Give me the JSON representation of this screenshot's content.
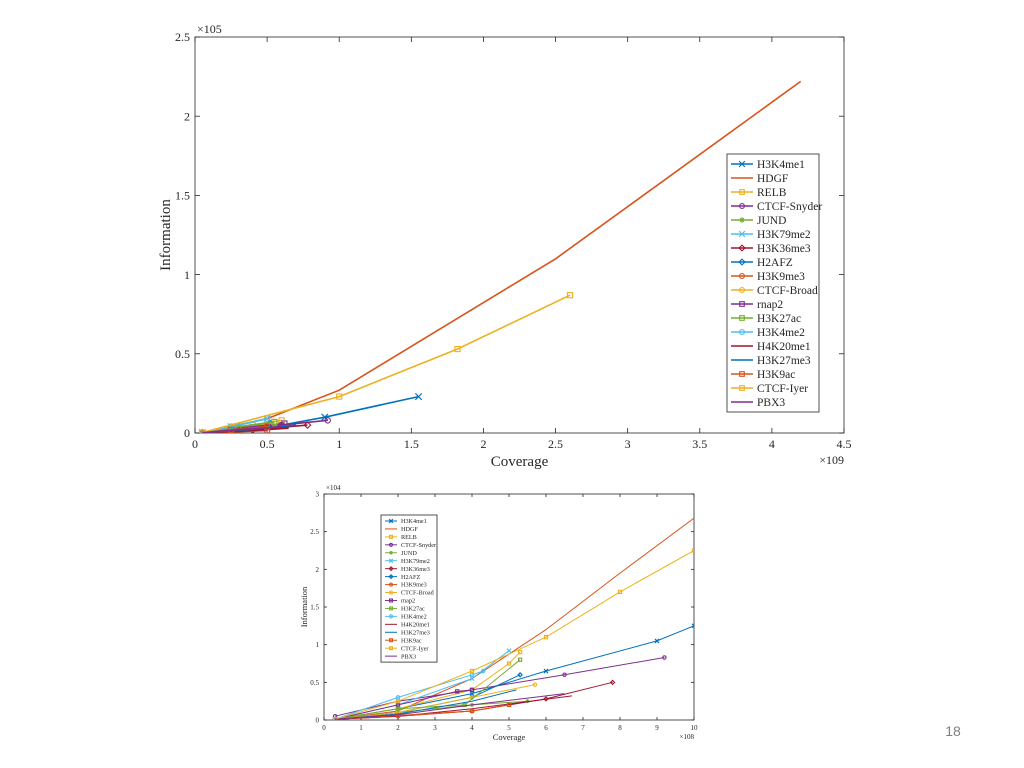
{
  "slide_number": "18",
  "series_styles": [
    {
      "name": "H3K4me1",
      "color": "#0072bd",
      "marker": "x"
    },
    {
      "name": "HDGF",
      "color": "#d95319",
      "marker": "none"
    },
    {
      "name": "RELB",
      "color": "#edb120",
      "marker": "square"
    },
    {
      "name": "CTCF-Snyder",
      "color": "#7e2f8e",
      "marker": "circle"
    },
    {
      "name": "JUND",
      "color": "#77ac30",
      "marker": "star"
    },
    {
      "name": "H3K79me2",
      "color": "#4dbeee",
      "marker": "x"
    },
    {
      "name": "H3K36me3",
      "color": "#a2142f",
      "marker": "diamond"
    },
    {
      "name": "H2AFZ",
      "color": "#0072bd",
      "marker": "diamond"
    },
    {
      "name": "H3K9me3",
      "color": "#d95319",
      "marker": "circle"
    },
    {
      "name": "CTCF-Broad",
      "color": "#edb120",
      "marker": "circle"
    },
    {
      "name": "rnap2",
      "color": "#7e2f8e",
      "marker": "square"
    },
    {
      "name": "H3K27ac",
      "color": "#77ac30",
      "marker": "square"
    },
    {
      "name": "H3K4me2",
      "color": "#4dbeee",
      "marker": "circle"
    },
    {
      "name": "H4K20me1",
      "color": "#a2142f",
      "marker": "none"
    },
    {
      "name": "H3K27me3",
      "color": "#0072bd",
      "marker": "none"
    },
    {
      "name": "H3K9ac",
      "color": "#d95319",
      "marker": "square"
    },
    {
      "name": "CTCF-Iyer",
      "color": "#edb120",
      "marker": "square"
    },
    {
      "name": "PBX3",
      "color": "#7e2f8e",
      "marker": "none"
    }
  ],
  "chart_data": [
    {
      "type": "line",
      "title": "",
      "xlabel": "Coverage",
      "ylabel": "Information",
      "x_exponent_label": "×10^9",
      "y_exponent_label": "×10^5",
      "xlim": [
        0,
        4.5
      ],
      "ylim": [
        0,
        2.5
      ],
      "xticks": [
        0,
        0.5,
        1,
        1.5,
        2,
        2.5,
        3,
        3.5,
        4,
        4.5
      ],
      "yticks": [
        0,
        0.5,
        1,
        1.5,
        2,
        2.5
      ],
      "xtick_labels": [
        "0",
        "0.5",
        "1",
        "1.5",
        "2",
        "2.5",
        "3",
        "3.5",
        "4",
        "4.5"
      ],
      "ytick_labels": [
        "0",
        "0.5",
        "1",
        "1.5",
        "2",
        "2.5"
      ],
      "legend_position": "right-middle",
      "grid": false,
      "series": [
        {
          "name": "H3K4me1",
          "x": [
            0.05,
            0.3,
            0.6,
            0.9,
            1.55
          ],
          "y": [
            0.002,
            0.02,
            0.05,
            0.1,
            0.23
          ]
        },
        {
          "name": "HDGF",
          "x": [
            0.05,
            0.5,
            1.0,
            2.5,
            4.2
          ],
          "y": [
            0.003,
            0.09,
            0.27,
            1.1,
            2.22
          ]
        },
        {
          "name": "RELB",
          "x": [
            0.05,
            0.2,
            0.4,
            0.6
          ],
          "y": [
            0.002,
            0.02,
            0.05,
            0.08
          ]
        },
        {
          "name": "CTCF-Snyder",
          "x": [
            0.05,
            0.3,
            0.6,
            0.92
          ],
          "y": [
            0.002,
            0.02,
            0.05,
            0.08
          ]
        },
        {
          "name": "JUND",
          "x": [
            0.05,
            0.3,
            0.5
          ],
          "y": [
            0.002,
            0.02,
            0.04
          ]
        },
        {
          "name": "H3K79me2",
          "x": [
            0.05,
            0.25,
            0.5
          ],
          "y": [
            0.002,
            0.04,
            0.09
          ]
        },
        {
          "name": "H3K36me3",
          "x": [
            0.05,
            0.4,
            0.78
          ],
          "y": [
            0.002,
            0.02,
            0.05
          ]
        },
        {
          "name": "H2AFZ",
          "x": [
            0.05,
            0.3,
            0.52
          ],
          "y": [
            0.002,
            0.03,
            0.06
          ]
        },
        {
          "name": "H3K9me3",
          "x": [
            0.05,
            0.3,
            0.5
          ],
          "y": [
            0.002,
            0.008,
            0.015
          ]
        },
        {
          "name": "CTCF-Broad",
          "x": [
            0.05,
            0.3,
            0.55
          ],
          "y": [
            0.002,
            0.03,
            0.06
          ]
        },
        {
          "name": "rnap2",
          "x": [
            0.05,
            0.3,
            0.62
          ],
          "y": [
            0.002,
            0.03,
            0.06
          ]
        },
        {
          "name": "H3K27ac",
          "x": [
            0.05,
            0.3,
            0.55
          ],
          "y": [
            0.002,
            0.04,
            0.07
          ]
        },
        {
          "name": "H3K4me2",
          "x": [
            0.05,
            0.25,
            0.5
          ],
          "y": [
            0.002,
            0.04,
            0.09
          ]
        },
        {
          "name": "H4K20me1",
          "x": [
            0.05,
            0.3,
            0.65
          ],
          "y": [
            0.002,
            0.01,
            0.03
          ]
        },
        {
          "name": "H3K27me3",
          "x": [
            0.05,
            0.35,
            0.7
          ],
          "y": [
            0.002,
            0.02,
            0.05
          ]
        },
        {
          "name": "H3K9ac",
          "x": [
            0.05,
            0.25,
            0.5
          ],
          "y": [
            0.002,
            0.02,
            0.04
          ]
        },
        {
          "name": "CTCF-Iyer",
          "x": [
            0.05,
            1.0,
            1.82,
            2.6
          ],
          "y": [
            0.003,
            0.23,
            0.53,
            0.87
          ]
        },
        {
          "name": "PBX3",
          "x": [
            0.05,
            0.3,
            0.6
          ],
          "y": [
            0.002,
            0.02,
            0.04
          ]
        }
      ]
    },
    {
      "type": "line",
      "title": "",
      "xlabel": "Coverage",
      "ylabel": "Information",
      "x_exponent_label": "×10^8",
      "y_exponent_label": "×10^4",
      "xlim": [
        0,
        10
      ],
      "ylim": [
        0,
        3
      ],
      "xticks": [
        0,
        1,
        2,
        3,
        4,
        5,
        6,
        7,
        8,
        9,
        10
      ],
      "yticks": [
        0,
        0.5,
        1,
        1.5,
        2,
        2.5,
        3
      ],
      "xtick_labels": [
        "0",
        "1",
        "2",
        "3",
        "4",
        "5",
        "6",
        "7",
        "8",
        "9",
        "10"
      ],
      "ytick_labels": [
        "0",
        "0.5",
        "1",
        "1.5",
        "2",
        "2.5",
        "3"
      ],
      "legend_position": "top-left",
      "grid": false,
      "series": [
        {
          "name": "H3K4me1",
          "x": [
            0.3,
            2,
            4,
            6,
            9,
            10
          ],
          "y": [
            0.01,
            0.15,
            0.35,
            0.65,
            1.05,
            1.25
          ]
        },
        {
          "name": "HDGF",
          "x": [
            0.3,
            2,
            4,
            6,
            8,
            10
          ],
          "y": [
            0.01,
            0.12,
            0.55,
            1.2,
            1.95,
            2.68
          ]
        },
        {
          "name": "RELB",
          "x": [
            0.3,
            2,
            4,
            5,
            5.3
          ],
          "y": [
            0.01,
            0.15,
            0.4,
            0.75,
            0.9
          ]
        },
        {
          "name": "CTCF-Snyder",
          "x": [
            0.3,
            2,
            4,
            6.5,
            9.2
          ],
          "y": [
            0.05,
            0.25,
            0.4,
            0.6,
            0.83
          ]
        },
        {
          "name": "JUND",
          "x": [
            0.3,
            2,
            4,
            5.5
          ],
          "y": [
            0.01,
            0.1,
            0.2,
            0.25
          ]
        },
        {
          "name": "H3K79me2",
          "x": [
            0.3,
            2,
            4,
            5
          ],
          "y": [
            0.01,
            0.2,
            0.55,
            0.92
          ]
        },
        {
          "name": "H3K36me3",
          "x": [
            0.3,
            2,
            4,
            6,
            7.8
          ],
          "y": [
            0.01,
            0.05,
            0.12,
            0.28,
            0.5
          ]
        },
        {
          "name": "H2AFZ",
          "x": [
            0.3,
            2,
            4,
            5.3
          ],
          "y": [
            0.01,
            0.1,
            0.3,
            0.6
          ]
        },
        {
          "name": "H3K9me3",
          "x": [
            0.3,
            2,
            4,
            5
          ],
          "y": [
            0.01,
            0.05,
            0.12,
            0.2
          ]
        },
        {
          "name": "CTCF-Broad",
          "x": [
            0.3,
            2,
            4,
            5.7
          ],
          "y": [
            0.01,
            0.1,
            0.3,
            0.47
          ]
        },
        {
          "name": "rnap2",
          "x": [
            0.3,
            2,
            3.6,
            4
          ],
          "y": [
            0.01,
            0.2,
            0.38,
            0.4
          ]
        },
        {
          "name": "H3K27ac",
          "x": [
            0.3,
            2,
            3.8,
            5.3
          ],
          "y": [
            0.01,
            0.15,
            0.2,
            0.8
          ]
        },
        {
          "name": "H3K4me2",
          "x": [
            0.3,
            2,
            4,
            4.3
          ],
          "y": [
            0.01,
            0.3,
            0.6,
            0.65
          ]
        },
        {
          "name": "H4K20me1",
          "x": [
            0.3,
            2,
            4,
            6.7
          ],
          "y": [
            0.01,
            0.05,
            0.15,
            0.32
          ]
        },
        {
          "name": "H3K27me3",
          "x": [
            0.3,
            2,
            4,
            5.2
          ],
          "y": [
            0.01,
            0.08,
            0.25,
            0.4
          ]
        },
        {
          "name": "H3K9ac",
          "x": [
            0.3,
            2,
            4,
            5
          ],
          "y": [
            0.01,
            0.06,
            0.12,
            0.2
          ]
        },
        {
          "name": "CTCF-Iyer",
          "x": [
            0.3,
            2,
            4,
            6,
            8,
            10
          ],
          "y": [
            0.01,
            0.25,
            0.65,
            1.1,
            1.7,
            2.25
          ]
        },
        {
          "name": "PBX3",
          "x": [
            0.3,
            2,
            4,
            6.5
          ],
          "y": [
            0.01,
            0.07,
            0.2,
            0.35
          ]
        }
      ]
    }
  ]
}
